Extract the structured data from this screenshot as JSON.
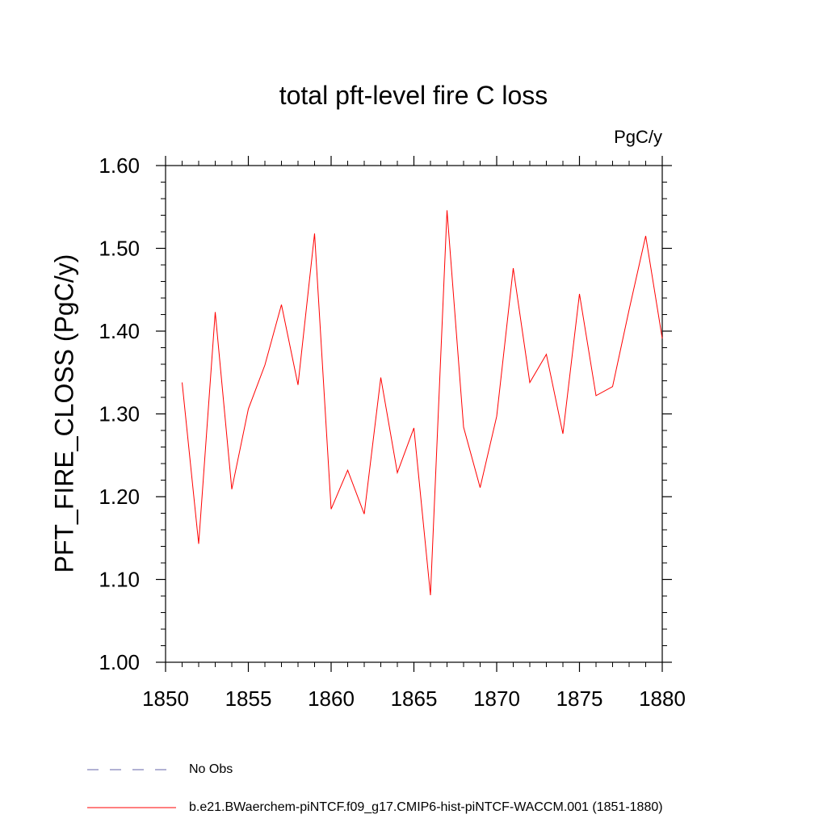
{
  "chart_data": {
    "type": "line",
    "title": "total pft-level fire C loss",
    "units_label": "PgC/y",
    "ylabel": "PFT_FIRE_CLOSS  (PgC/y)",
    "xlabel": "",
    "xlim": [
      1850,
      1880
    ],
    "ylim": [
      1.0,
      1.6
    ],
    "x_ticks": [
      1850,
      1855,
      1860,
      1865,
      1870,
      1875,
      1880
    ],
    "x_tick_labels": [
      "1850",
      "1855",
      "1860",
      "1865",
      "1870",
      "1875",
      "1880"
    ],
    "y_ticks": [
      1.0,
      1.1,
      1.2,
      1.3,
      1.4,
      1.5,
      1.6
    ],
    "y_tick_labels": [
      "1.00",
      "1.10",
      "1.20",
      "1.30",
      "1.40",
      "1.50",
      "1.60"
    ],
    "grid": false,
    "legend_position": "bottom",
    "series": [
      {
        "name": "b.e21.BWaerchem-piNTCF.f09_g17.CMIP6-hist-piNTCF-WACCM.001 (1851-1880)",
        "color": "#ff0000",
        "x": [
          1851,
          1852,
          1853,
          1854,
          1855,
          1856,
          1857,
          1858,
          1859,
          1860,
          1861,
          1862,
          1863,
          1864,
          1865,
          1866,
          1867,
          1868,
          1869,
          1870,
          1871,
          1872,
          1873,
          1874,
          1875,
          1876,
          1877,
          1878,
          1879,
          1880
        ],
        "values": [
          1.338,
          1.143,
          1.423,
          1.209,
          1.306,
          1.359,
          1.432,
          1.335,
          1.518,
          1.185,
          1.232,
          1.179,
          1.344,
          1.229,
          1.283,
          1.081,
          1.546,
          1.284,
          1.211,
          1.297,
          1.476,
          1.338,
          1.372,
          1.276,
          1.445,
          1.322,
          1.333,
          1.426,
          1.515,
          1.391
        ]
      }
    ],
    "legend": [
      {
        "label": "No Obs",
        "color": "#6666aa",
        "dash": "dashed"
      },
      {
        "label": "b.e21.BWaerchem-piNTCF.f09_g17.CMIP6-hist-piNTCF-WACCM.001 (1851-1880)",
        "color": "#ff0000",
        "dash": "solid"
      }
    ]
  }
}
